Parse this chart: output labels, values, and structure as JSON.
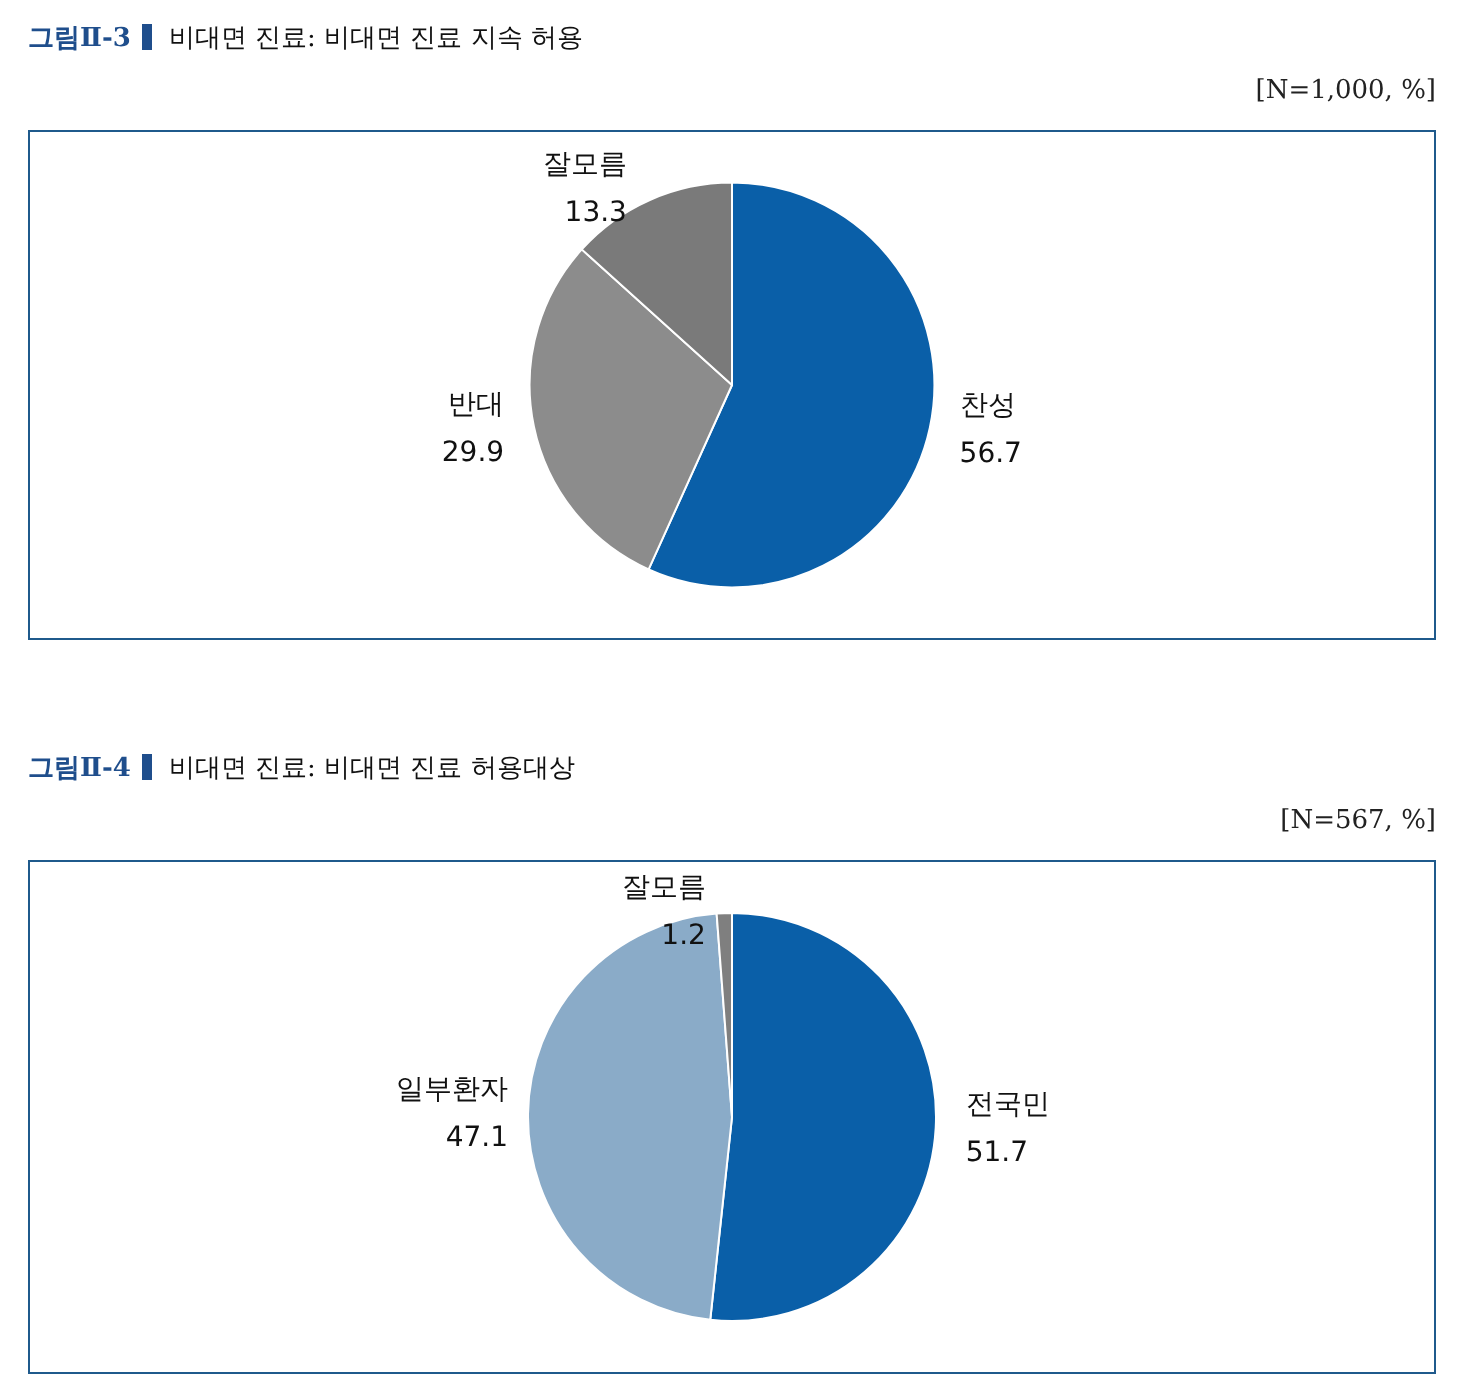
{
  "chart_data": [
    {
      "type": "pie",
      "title": "그림Ⅱ-3",
      "subtitle": "비대면 진료: 비대면 진료 지속 허용",
      "annotations": [
        "[N=1,000, %]"
      ],
      "categories": [
        "찬성",
        "반대",
        "잘모름"
      ],
      "values": [
        56.7,
        29.9,
        13.3
      ],
      "colors": [
        "#0a5fa8",
        "#8c8c8c",
        "#7a7a7a"
      ],
      "data_labels": true
    },
    {
      "type": "pie",
      "title": "그림Ⅱ-4",
      "subtitle": "비대면 진료: 비대면 진료 허용대상",
      "annotations": [
        "[N=567, %]"
      ],
      "categories": [
        "전국민",
        "일부환자",
        "잘모름"
      ],
      "values": [
        51.7,
        47.1,
        1.2
      ],
      "colors": [
        "#0a5fa8",
        "#8aabc8",
        "#7f7f7f"
      ],
      "data_labels": true
    }
  ]
}
